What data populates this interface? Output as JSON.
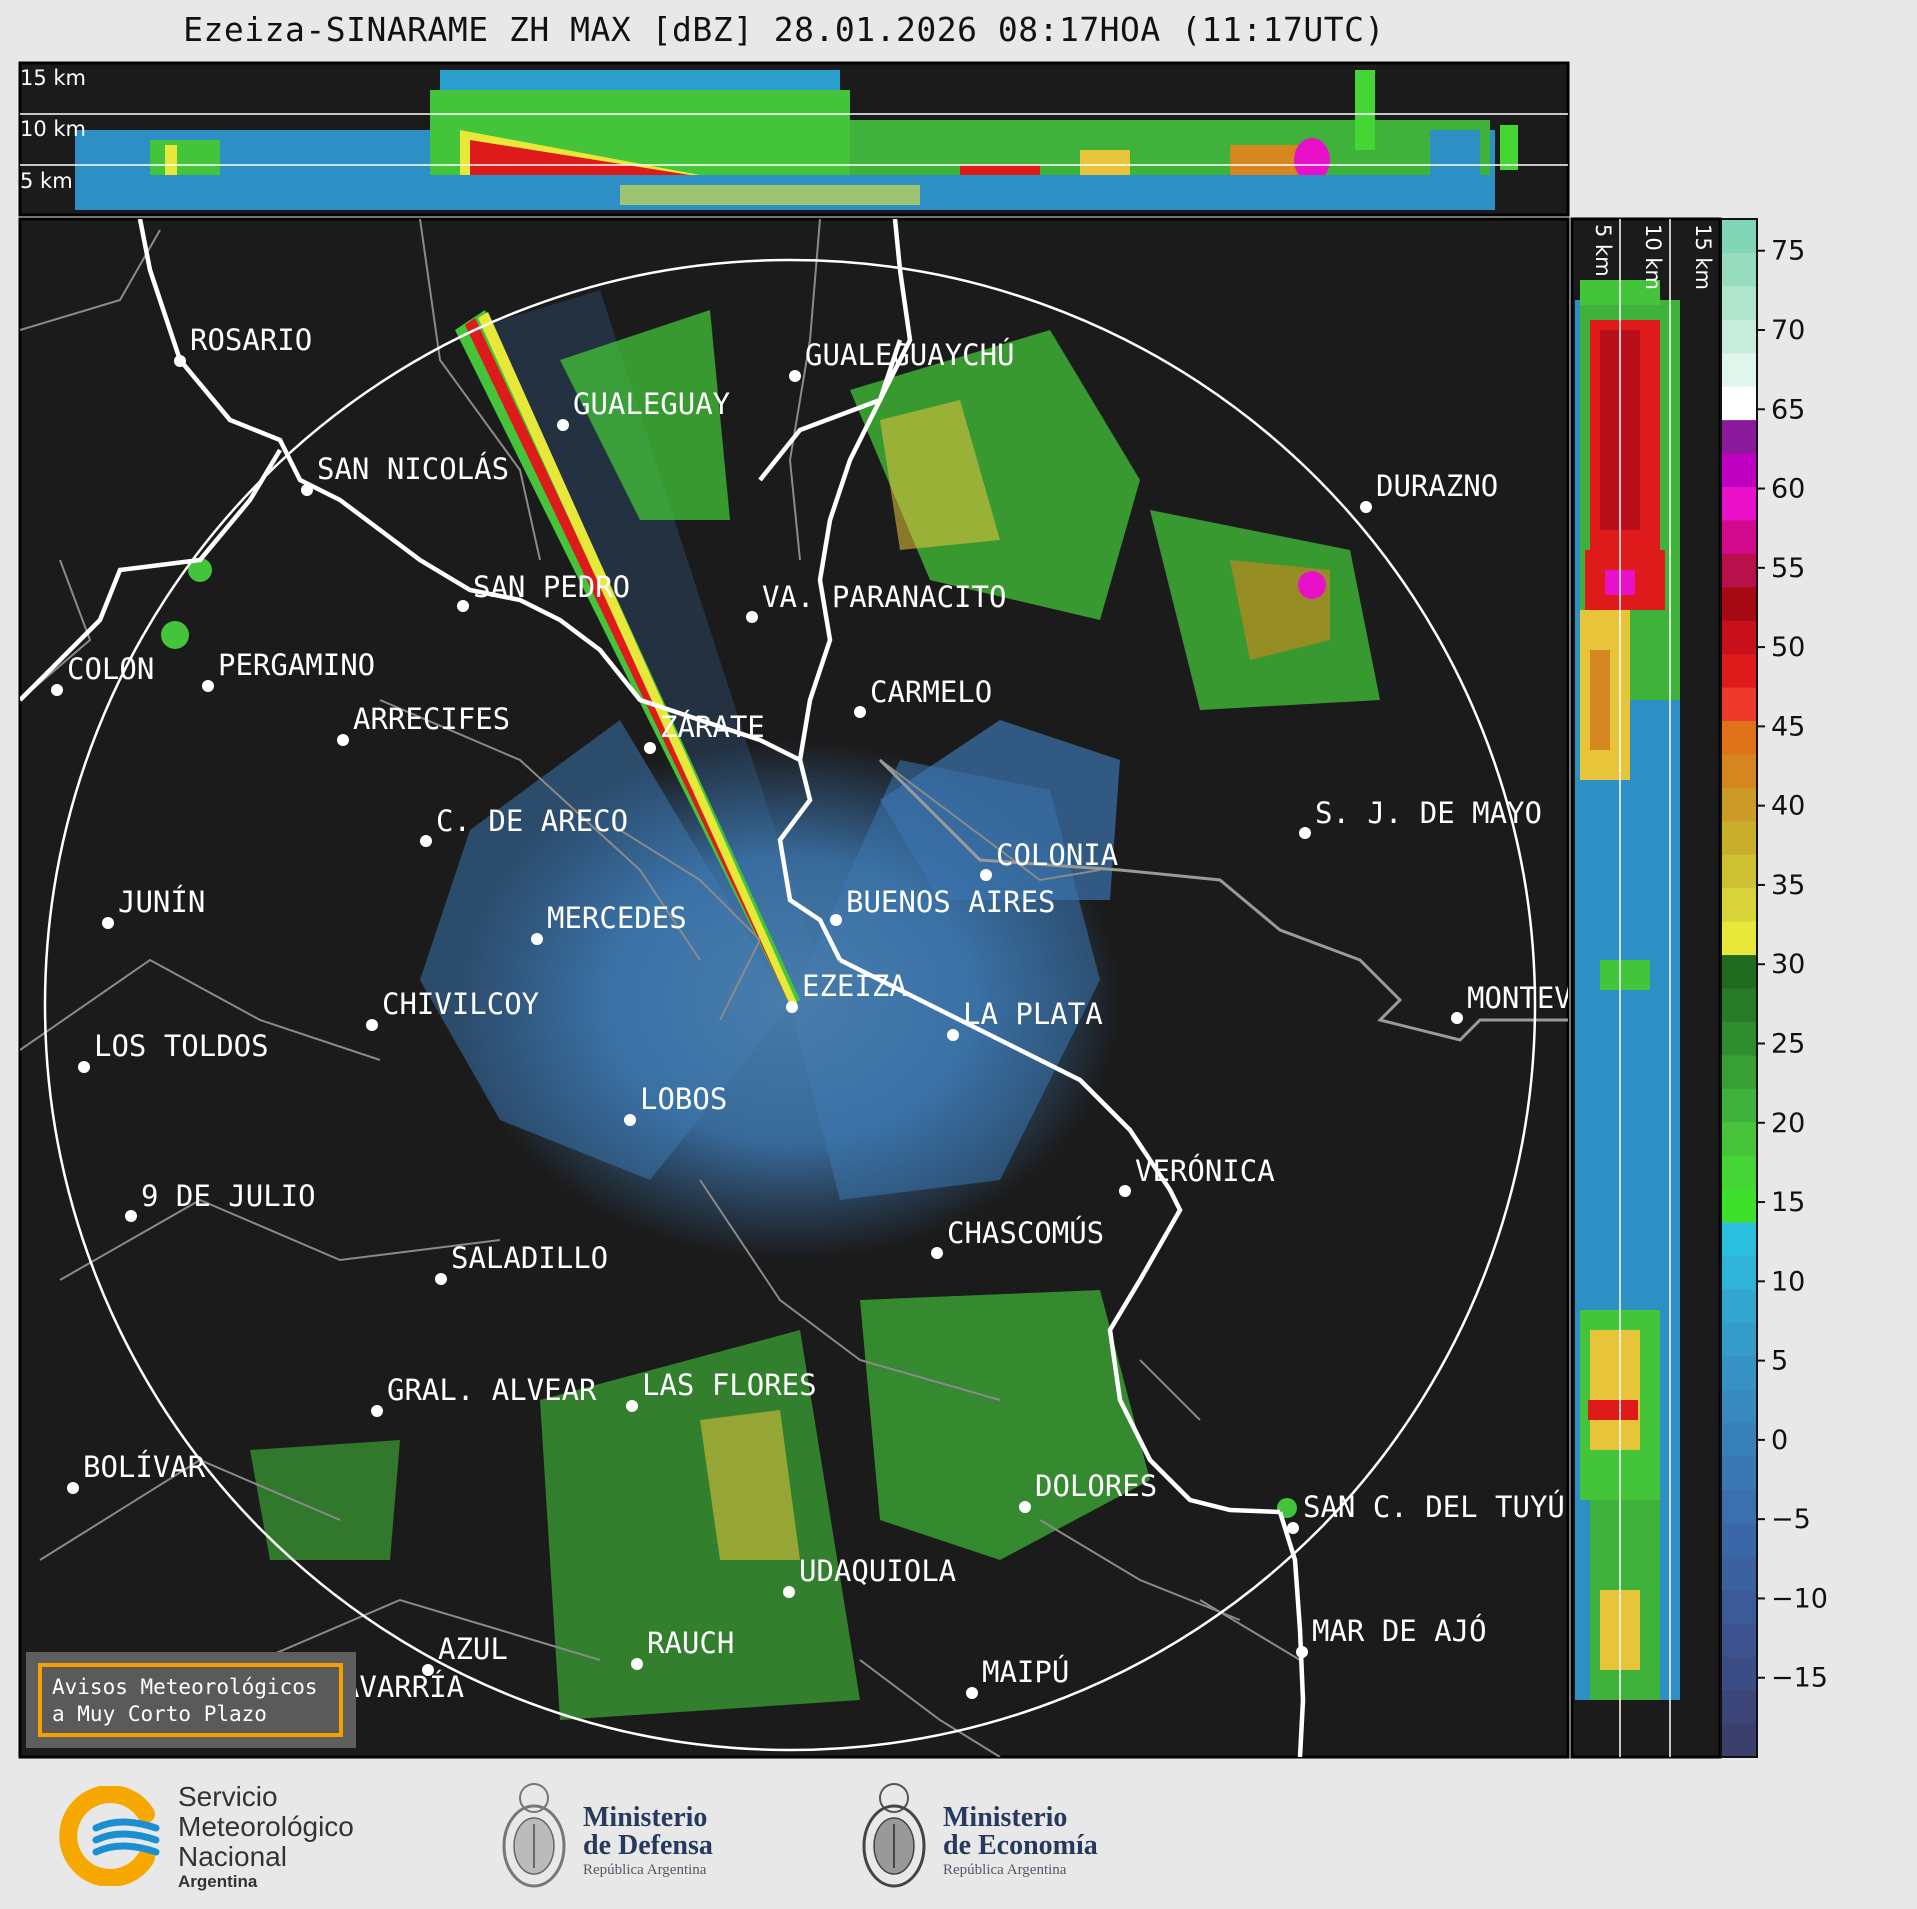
{
  "title": "Ezeiza-SINARAME ZH MAX [dBZ] 28.01.2026 08:17HOA (11:17UTC)",
  "height_labels_top": [
    "15 km",
    "10 km",
    "5 km"
  ],
  "height_labels_right": [
    "5 km",
    "10 km",
    "15 km"
  ],
  "cities": [
    {
      "name": "ROSARIO"
    },
    {
      "name": "GUALEGUAYCHÚ"
    },
    {
      "name": "GUALEGUAY"
    },
    {
      "name": "SAN NICOLÁS"
    },
    {
      "name": "DURAZNO"
    },
    {
      "name": "SAN PEDRO"
    },
    {
      "name": "VA. PARANACITO"
    },
    {
      "name": "COLON"
    },
    {
      "name": "PERGAMINO"
    },
    {
      "name": "CARMELO"
    },
    {
      "name": "ARRECIFES"
    },
    {
      "name": "ZÁRATE"
    },
    {
      "name": "S. J. DE MAYO"
    },
    {
      "name": "C. DE ARECO"
    },
    {
      "name": "COLONIA"
    },
    {
      "name": "JUNÍN"
    },
    {
      "name": "BUENOS AIRES"
    },
    {
      "name": "MERCEDES"
    },
    {
      "name": "EZEIZA"
    },
    {
      "name": "MONTEVIDEO"
    },
    {
      "name": "CHIVILCOY"
    },
    {
      "name": "LA PLATA"
    },
    {
      "name": "LOS TOLDOS"
    },
    {
      "name": "LOBOS"
    },
    {
      "name": "VERÓNICA"
    },
    {
      "name": "9 DE JULIO"
    },
    {
      "name": "CHASCOMÚS"
    },
    {
      "name": "SALADILLO"
    },
    {
      "name": "GRAL. ALVEAR"
    },
    {
      "name": "LAS FLORES"
    },
    {
      "name": "BOLÍVAR"
    },
    {
      "name": "DOLORES"
    },
    {
      "name": "SAN C. DEL TUYÚ"
    },
    {
      "name": "UDAQUIOLA"
    },
    {
      "name": "MAR DE AJÓ"
    },
    {
      "name": "RAUCH"
    },
    {
      "name": "AZUL"
    },
    {
      "name": "MAIPÚ"
    },
    {
      "name": "OLAVARRÍA"
    }
  ],
  "colorbar": {
    "unit": "dBZ",
    "ticks": [
      "75",
      "70",
      "65",
      "60",
      "55",
      "50",
      "45",
      "40",
      "35",
      "30",
      "25",
      "20",
      "15",
      "10",
      "5",
      "0",
      "−5",
      "−10",
      "−15"
    ],
    "colors": [
      "#3a3f6b",
      "#3b4577",
      "#3c4c84",
      "#3d5390",
      "#3c5a98",
      "#3b61a0",
      "#3a68a7",
      "#3a70ad",
      "#3978b3",
      "#3880b8",
      "#3789be",
      "#3692c4",
      "#359bc9",
      "#33a6cf",
      "#2fb3d8",
      "#2cc0e0",
      "#3de02a",
      "#45d635",
      "#48c43a",
      "#3fb23b",
      "#379f34",
      "#2f8d2d",
      "#277a26",
      "#1f6b1f",
      "#e8e83a",
      "#d9d33a",
      "#cfc232",
      "#c9ae2c",
      "#cc9a26",
      "#d6861e",
      "#e0721a",
      "#ee3a2a",
      "#de1a1a",
      "#c8101a",
      "#a60814",
      "#b8104a",
      "#d00a8a",
      "#e810c8",
      "#c000c0",
      "#8a1a9a",
      "#ffffff",
      "#e0f5ec",
      "#c8ecdc",
      "#b0e4cc",
      "#98dcc0",
      "#80d6b6"
    ]
  },
  "alert_box": {
    "line1": "Avisos Meteorológicos",
    "line2": "a Muy Corto Plazo"
  },
  "logos": {
    "smn": {
      "l1": "Servicio",
      "l2": "Meteorológico",
      "l3": "Nacional",
      "l4": "Argentina"
    },
    "defensa": {
      "l1": "Ministerio",
      "l2": "de Defensa",
      "l3": "República Argentina"
    },
    "economia": {
      "l1": "Ministerio",
      "l2": "de Economía",
      "l3": "República Argentina"
    },
    "colors": {
      "smn_orange": "#f6a800",
      "smn_blue": "#1a8fd1",
      "ministry_navy": "#263a5e"
    }
  }
}
